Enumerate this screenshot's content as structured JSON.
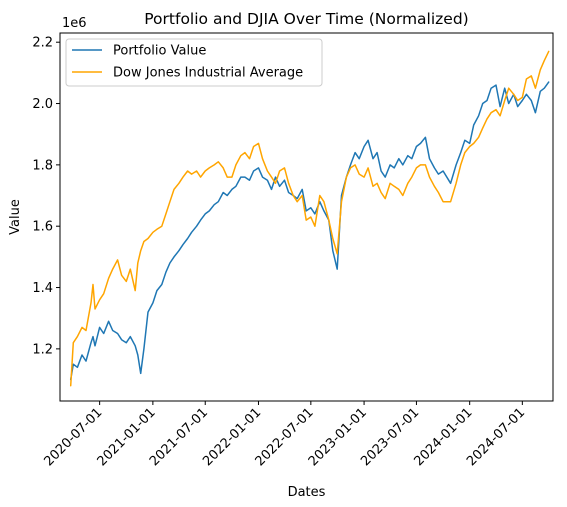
{
  "chart_data": {
    "type": "line",
    "title": "Portfolio and DJIA Over Time (Normalized)",
    "xlabel": "Dates",
    "ylabel": "Value",
    "y_offset_label": "1e6",
    "xlim": [
      "2020-02-15",
      "2024-10-15"
    ],
    "ylim": [
      1030000,
      2230000
    ],
    "y_ticks": [
      1200000,
      1400000,
      1600000,
      1800000,
      2000000,
      2200000
    ],
    "y_tick_labels": [
      "1.2",
      "1.4",
      "1.6",
      "1.8",
      "2.0",
      "2.2"
    ],
    "x_ticks": [
      "2020-07-01",
      "2021-01-01",
      "2021-07-01",
      "2022-01-01",
      "2022-07-01",
      "2023-01-01",
      "2023-07-01",
      "2024-01-01",
      "2024-07-01"
    ],
    "grid": false,
    "legend_position": "upper left",
    "series": [
      {
        "name": "Portfolio Value",
        "color": "#1f77b4",
        "x": [
          "2020-03-23",
          "2020-04-01",
          "2020-04-15",
          "2020-05-01",
          "2020-05-15",
          "2020-06-01",
          "2020-06-08",
          "2020-06-15",
          "2020-07-01",
          "2020-07-15",
          "2020-08-01",
          "2020-08-15",
          "2020-09-01",
          "2020-09-15",
          "2020-10-01",
          "2020-10-15",
          "2020-11-01",
          "2020-11-10",
          "2020-11-20",
          "2020-12-01",
          "2020-12-15",
          "2021-01-01",
          "2021-01-15",
          "2021-02-01",
          "2021-02-15",
          "2021-03-01",
          "2021-03-15",
          "2021-04-01",
          "2021-04-15",
          "2021-05-01",
          "2021-05-15",
          "2021-06-01",
          "2021-06-15",
          "2021-07-01",
          "2021-07-15",
          "2021-08-01",
          "2021-08-15",
          "2021-09-01",
          "2021-09-15",
          "2021-10-01",
          "2021-10-15",
          "2021-11-01",
          "2021-11-15",
          "2021-12-01",
          "2021-12-15",
          "2022-01-01",
          "2022-01-15",
          "2022-02-01",
          "2022-02-15",
          "2022-03-01",
          "2022-03-15",
          "2022-04-01",
          "2022-04-15",
          "2022-05-01",
          "2022-05-15",
          "2022-06-01",
          "2022-06-15",
          "2022-07-01",
          "2022-07-15",
          "2022-08-01",
          "2022-08-15",
          "2022-09-01",
          "2022-09-15",
          "2022-09-30",
          "2022-10-15",
          "2022-11-01",
          "2022-11-15",
          "2022-12-01",
          "2022-12-15",
          "2023-01-01",
          "2023-01-15",
          "2023-02-01",
          "2023-02-15",
          "2023-03-01",
          "2023-03-15",
          "2023-04-01",
          "2023-04-15",
          "2023-05-01",
          "2023-05-15",
          "2023-06-01",
          "2023-06-15",
          "2023-07-01",
          "2023-07-15",
          "2023-08-01",
          "2023-08-15",
          "2023-09-01",
          "2023-09-15",
          "2023-10-01",
          "2023-10-27",
          "2023-11-15",
          "2023-12-01",
          "2023-12-15",
          "2024-01-01",
          "2024-01-15",
          "2024-02-01",
          "2024-02-15",
          "2024-03-01",
          "2024-03-15",
          "2024-04-01",
          "2024-04-15",
          "2024-05-01",
          "2024-05-15",
          "2024-06-01",
          "2024-06-15",
          "2024-07-01",
          "2024-07-15",
          "2024-08-01",
          "2024-08-15",
          "2024-09-01",
          "2024-09-15",
          "2024-09-30"
        ],
        "values": [
          1100000,
          1150000,
          1140000,
          1180000,
          1160000,
          1220000,
          1240000,
          1210000,
          1270000,
          1250000,
          1290000,
          1260000,
          1250000,
          1230000,
          1220000,
          1240000,
          1210000,
          1180000,
          1120000,
          1200000,
          1320000,
          1350000,
          1390000,
          1410000,
          1450000,
          1480000,
          1500000,
          1520000,
          1540000,
          1560000,
          1580000,
          1600000,
          1620000,
          1640000,
          1650000,
          1670000,
          1680000,
          1710000,
          1700000,
          1720000,
          1730000,
          1760000,
          1760000,
          1750000,
          1780000,
          1790000,
          1760000,
          1750000,
          1720000,
          1760000,
          1730000,
          1750000,
          1710000,
          1700000,
          1690000,
          1720000,
          1650000,
          1660000,
          1640000,
          1680000,
          1650000,
          1620000,
          1520000,
          1460000,
          1700000,
          1760000,
          1800000,
          1840000,
          1820000,
          1860000,
          1880000,
          1820000,
          1840000,
          1780000,
          1760000,
          1800000,
          1790000,
          1820000,
          1800000,
          1830000,
          1820000,
          1860000,
          1870000,
          1890000,
          1820000,
          1790000,
          1770000,
          1780000,
          1740000,
          1800000,
          1840000,
          1880000,
          1870000,
          1930000,
          1960000,
          2000000,
          2010000,
          2050000,
          2060000,
          1990000,
          2050000,
          2000000,
          2030000,
          1990000,
          2010000,
          2030000,
          2010000,
          1970000,
          2040000,
          2050000,
          2070000
        ]
      },
      {
        "name": "Dow Jones Industrial Average",
        "color": "#ffa500",
        "x": [
          "2020-03-23",
          "2020-04-01",
          "2020-04-15",
          "2020-05-01",
          "2020-05-15",
          "2020-06-01",
          "2020-06-08",
          "2020-06-15",
          "2020-07-01",
          "2020-07-15",
          "2020-08-01",
          "2020-08-15",
          "2020-09-01",
          "2020-09-15",
          "2020-10-01",
          "2020-10-15",
          "2020-11-01",
          "2020-11-10",
          "2020-11-20",
          "2020-12-01",
          "2020-12-15",
          "2021-01-01",
          "2021-01-15",
          "2021-02-01",
          "2021-02-15",
          "2021-03-01",
          "2021-03-15",
          "2021-04-01",
          "2021-04-15",
          "2021-05-01",
          "2021-05-15",
          "2021-06-01",
          "2021-06-15",
          "2021-07-01",
          "2021-07-15",
          "2021-08-01",
          "2021-08-15",
          "2021-09-01",
          "2021-09-15",
          "2021-10-01",
          "2021-10-15",
          "2021-11-01",
          "2021-11-15",
          "2021-12-01",
          "2021-12-15",
          "2022-01-01",
          "2022-01-15",
          "2022-02-01",
          "2022-02-15",
          "2022-03-01",
          "2022-03-15",
          "2022-04-01",
          "2022-04-15",
          "2022-05-01",
          "2022-05-15",
          "2022-06-01",
          "2022-06-15",
          "2022-07-01",
          "2022-07-15",
          "2022-08-01",
          "2022-08-15",
          "2022-09-01",
          "2022-09-15",
          "2022-09-30",
          "2022-10-15",
          "2022-11-01",
          "2022-11-15",
          "2022-12-01",
          "2022-12-15",
          "2023-01-01",
          "2023-01-15",
          "2023-02-01",
          "2023-02-15",
          "2023-03-01",
          "2023-03-15",
          "2023-04-01",
          "2023-04-15",
          "2023-05-01",
          "2023-05-15",
          "2023-06-01",
          "2023-06-15",
          "2023-07-01",
          "2023-07-15",
          "2023-08-01",
          "2023-08-15",
          "2023-09-01",
          "2023-09-15",
          "2023-10-01",
          "2023-10-27",
          "2023-11-15",
          "2023-12-01",
          "2023-12-15",
          "2024-01-01",
          "2024-01-15",
          "2024-02-01",
          "2024-02-15",
          "2024-03-01",
          "2024-03-15",
          "2024-04-01",
          "2024-04-15",
          "2024-05-01",
          "2024-05-15",
          "2024-06-01",
          "2024-06-15",
          "2024-07-01",
          "2024-07-15",
          "2024-08-01",
          "2024-08-15",
          "2024-09-01",
          "2024-09-15",
          "2024-09-30"
        ],
        "values": [
          1080000,
          1220000,
          1240000,
          1270000,
          1260000,
          1350000,
          1410000,
          1330000,
          1360000,
          1380000,
          1430000,
          1460000,
          1490000,
          1440000,
          1420000,
          1460000,
          1390000,
          1480000,
          1520000,
          1550000,
          1560000,
          1580000,
          1590000,
          1600000,
          1640000,
          1680000,
          1720000,
          1740000,
          1760000,
          1780000,
          1770000,
          1780000,
          1760000,
          1780000,
          1790000,
          1800000,
          1810000,
          1790000,
          1760000,
          1760000,
          1800000,
          1830000,
          1840000,
          1820000,
          1860000,
          1870000,
          1820000,
          1780000,
          1760000,
          1740000,
          1780000,
          1790000,
          1740000,
          1700000,
          1680000,
          1700000,
          1620000,
          1630000,
          1600000,
          1700000,
          1680000,
          1620000,
          1560000,
          1510000,
          1680000,
          1760000,
          1790000,
          1800000,
          1770000,
          1760000,
          1790000,
          1730000,
          1740000,
          1710000,
          1690000,
          1740000,
          1730000,
          1720000,
          1700000,
          1740000,
          1760000,
          1790000,
          1800000,
          1800000,
          1760000,
          1730000,
          1710000,
          1680000,
          1680000,
          1740000,
          1800000,
          1840000,
          1860000,
          1870000,
          1890000,
          1920000,
          1950000,
          1970000,
          1980000,
          1960000,
          2010000,
          2050000,
          2030000,
          2010000,
          2020000,
          2080000,
          2090000,
          2050000,
          2110000,
          2140000,
          2170000
        ]
      }
    ]
  }
}
